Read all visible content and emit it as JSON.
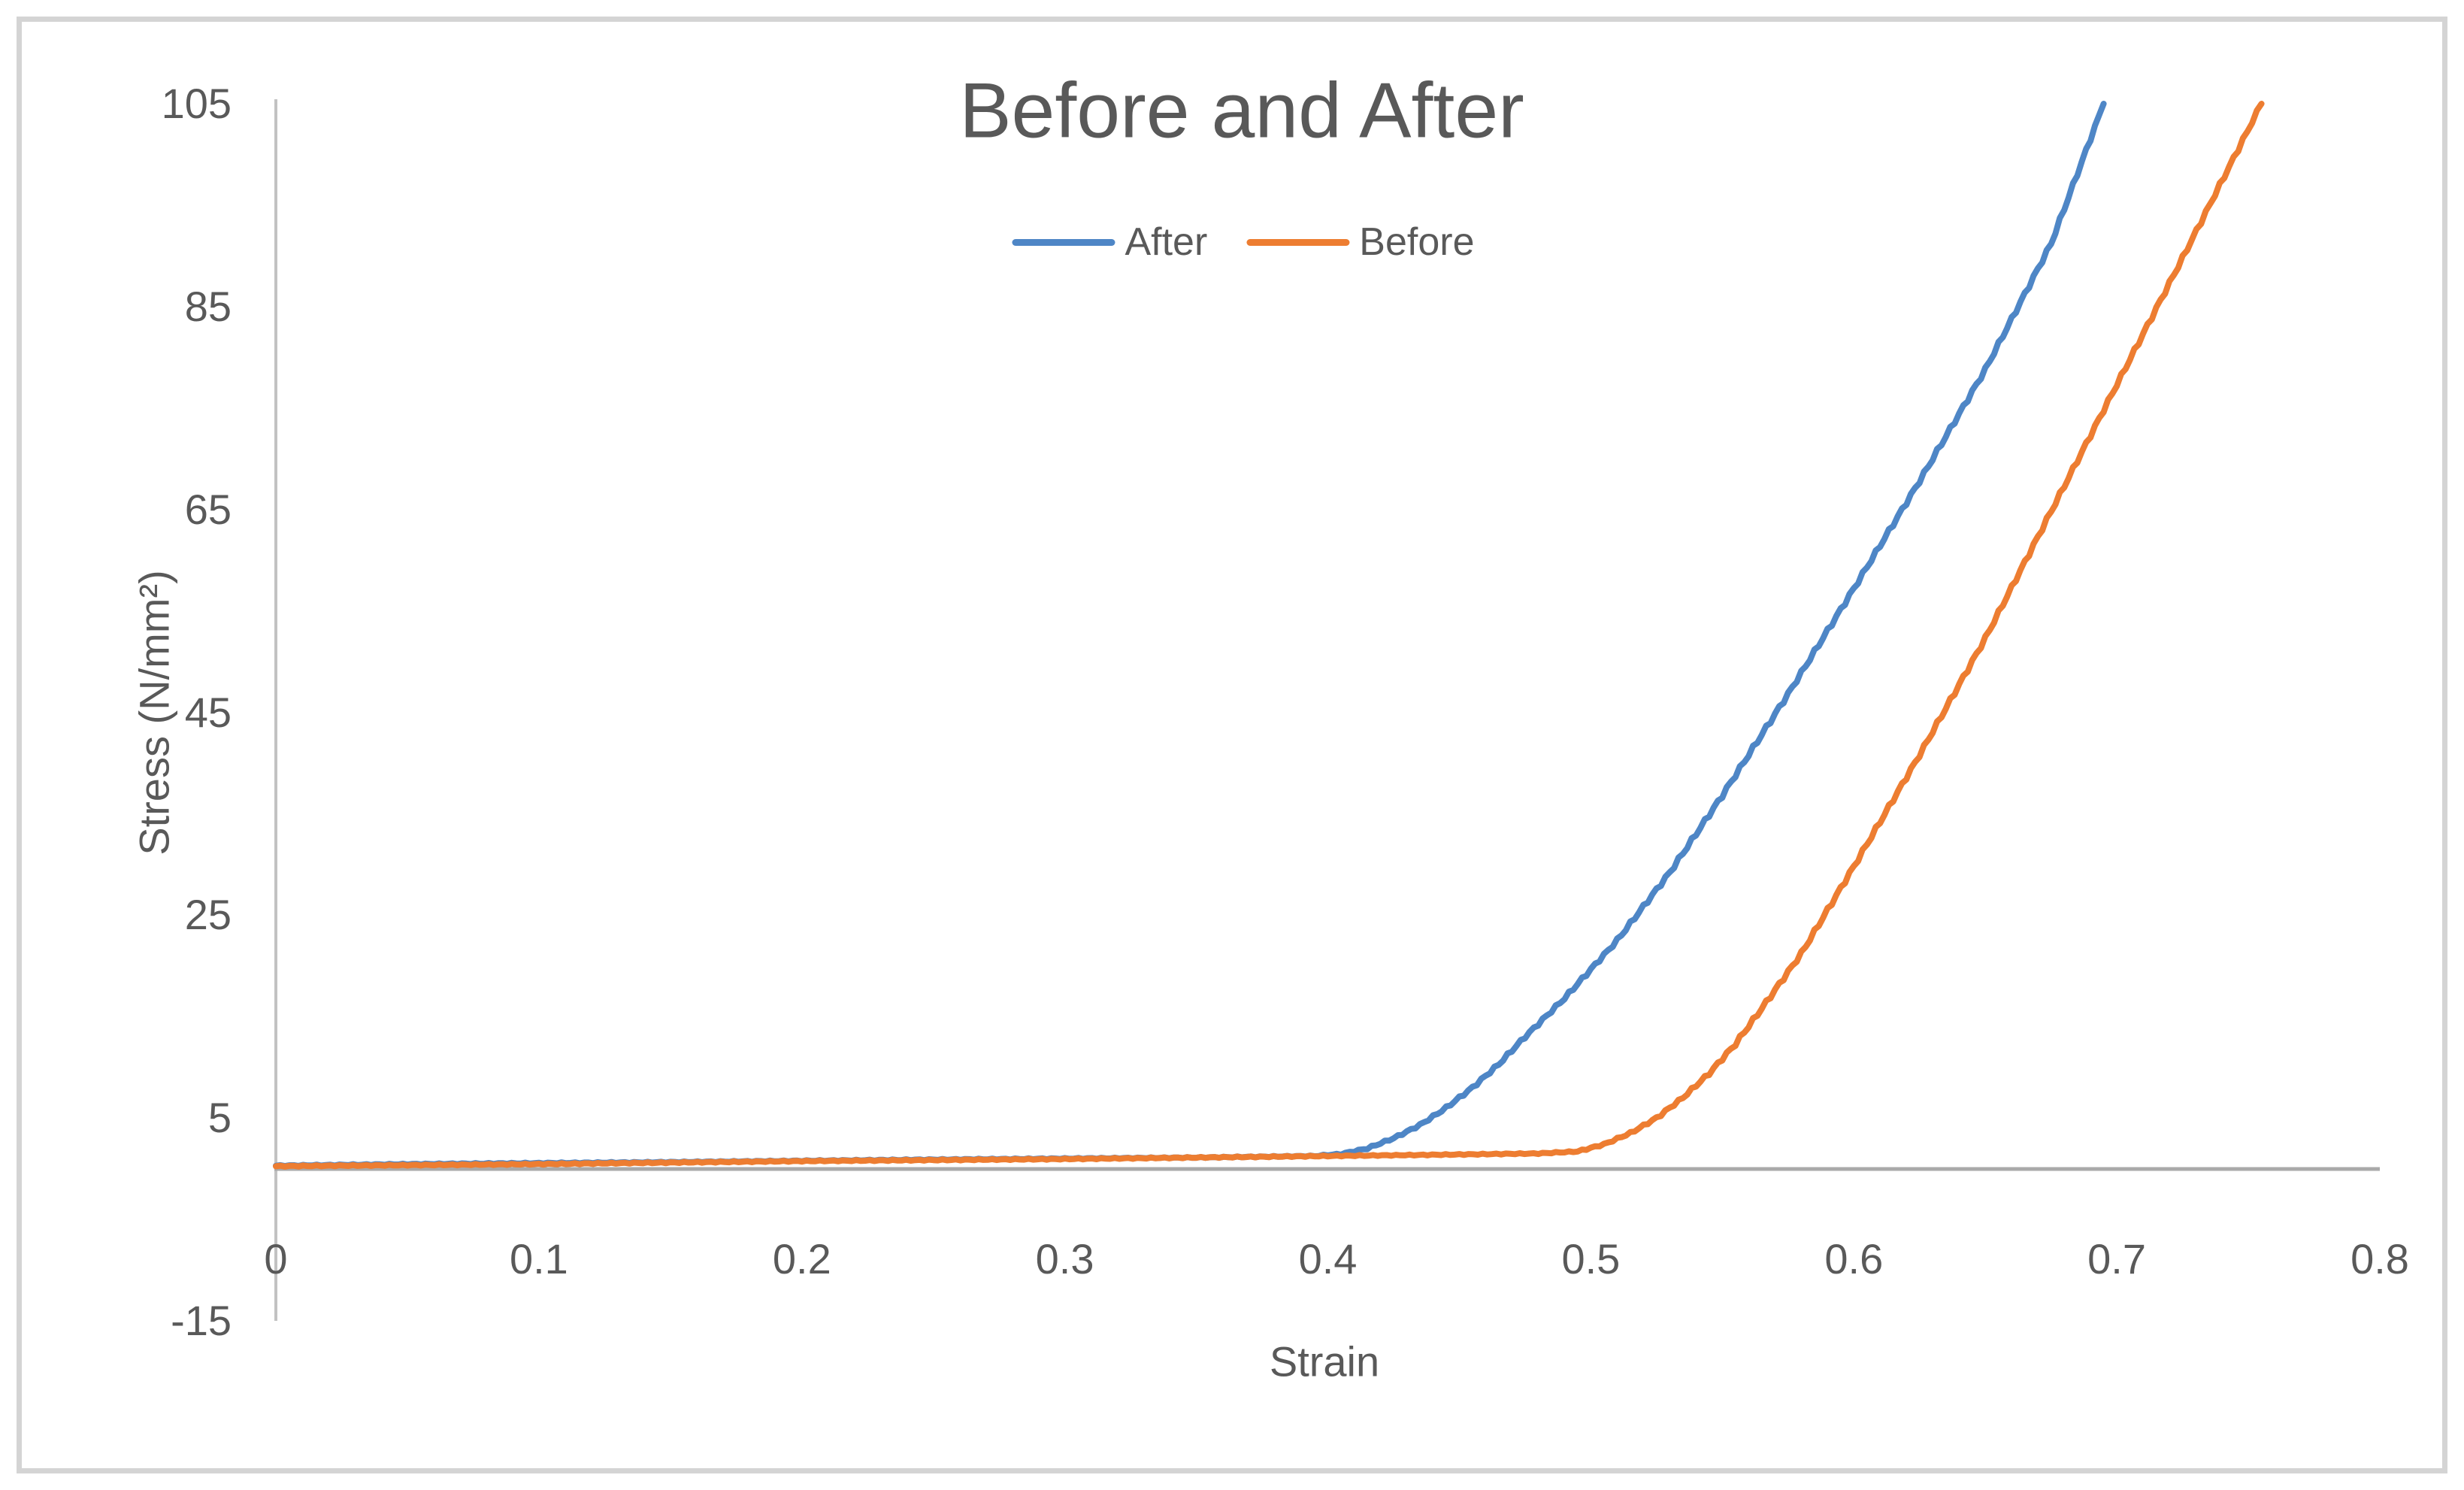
{
  "chart_data": {
    "type": "line",
    "title": "Before and After",
    "xlabel": "Strain",
    "ylabel": "Stress (N/mm²)",
    "xlim": [
      0,
      0.8
    ],
    "ylim": [
      -15,
      105
    ],
    "x_ticks": [
      0,
      0.1,
      0.2,
      0.3,
      0.4,
      0.5,
      0.6,
      0.7,
      0.8
    ],
    "x_tick_labels": [
      "0",
      "0.1",
      "0.2",
      "0.3",
      "0.4",
      "0.5",
      "0.6",
      "0.7",
      "0.8"
    ],
    "y_ticks": [
      105,
      85,
      65,
      45,
      25,
      5,
      -15
    ],
    "y_tick_labels": [
      "105",
      "85",
      "65",
      "45",
      "25",
      "5",
      "-15"
    ],
    "grid": false,
    "legend_position": "top-center",
    "line_style": "stepped",
    "series": [
      {
        "name": "After",
        "color": "#4E86C6",
        "points": [
          [
            0,
            0.3
          ],
          [
            0.05,
            0.45
          ],
          [
            0.1,
            0.55
          ],
          [
            0.15,
            0.65
          ],
          [
            0.2,
            0.78
          ],
          [
            0.25,
            0.9
          ],
          [
            0.3,
            1.0
          ],
          [
            0.35,
            1.1
          ],
          [
            0.395,
            1.25
          ],
          [
            0.405,
            1.45
          ],
          [
            0.415,
            2.0
          ],
          [
            0.425,
            3.0
          ],
          [
            0.435,
            4.3
          ],
          [
            0.445,
            6.0
          ],
          [
            0.455,
            8.0
          ],
          [
            0.465,
            10.3
          ],
          [
            0.475,
            13.0
          ],
          [
            0.49,
            16.8
          ],
          [
            0.51,
            22.5
          ],
          [
            0.53,
            29.2
          ],
          [
            0.55,
            36.8
          ],
          [
            0.575,
            46.8
          ],
          [
            0.6,
            57.2
          ],
          [
            0.625,
            67.8
          ],
          [
            0.65,
            78.8
          ],
          [
            0.675,
            91.2
          ],
          [
            0.695,
            105
          ]
        ]
      },
      {
        "name": "Before",
        "color": "#ED7D31",
        "points": [
          [
            0,
            0.25
          ],
          [
            0.05,
            0.35
          ],
          [
            0.1,
            0.45
          ],
          [
            0.15,
            0.6
          ],
          [
            0.2,
            0.75
          ],
          [
            0.25,
            0.85
          ],
          [
            0.3,
            0.95
          ],
          [
            0.35,
            1.1
          ],
          [
            0.4,
            1.25
          ],
          [
            0.45,
            1.4
          ],
          [
            0.48,
            1.5
          ],
          [
            0.495,
            1.7
          ],
          [
            0.505,
            2.4
          ],
          [
            0.515,
            3.5
          ],
          [
            0.525,
            5.0
          ],
          [
            0.535,
            7.0
          ],
          [
            0.545,
            9.4
          ],
          [
            0.555,
            12.3
          ],
          [
            0.565,
            15.8
          ],
          [
            0.58,
            21.2
          ],
          [
            0.6,
            29.8
          ],
          [
            0.625,
            40.8
          ],
          [
            0.65,
            52.3
          ],
          [
            0.675,
            64.8
          ],
          [
            0.7,
            77.3
          ],
          [
            0.725,
            89.8
          ],
          [
            0.755,
            105
          ]
        ]
      }
    ],
    "colors": {
      "text": "#595959",
      "x_axis_line": "#A9A9A9",
      "y_axis_line": "#C2C2C2",
      "frame_border": "#D4D4D4",
      "background": "#FFFFFF"
    }
  }
}
